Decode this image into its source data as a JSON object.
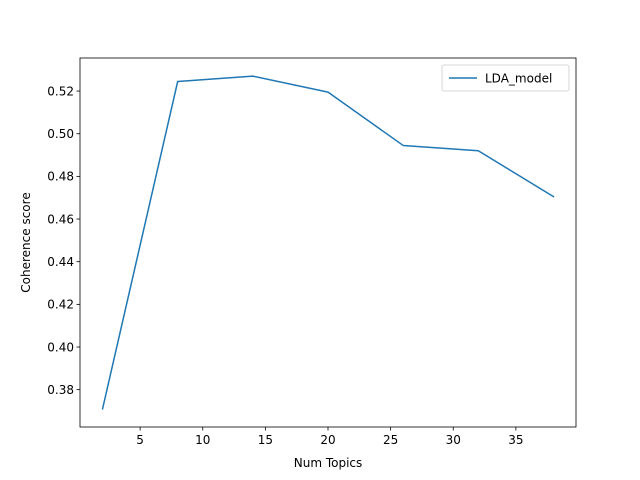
{
  "chart_data": {
    "type": "line",
    "title": "",
    "xlabel": "Num Topics",
    "ylabel": "Coherence score",
    "xlim": [
      0.2,
      39.8
    ],
    "ylim": [
      0.3625,
      0.5355
    ],
    "x_ticks": [
      5,
      10,
      15,
      20,
      25,
      30,
      35
    ],
    "y_ticks": [
      0.38,
      0.4,
      0.42,
      0.44,
      0.46,
      0.48,
      0.5,
      0.52
    ],
    "grid": false,
    "legend_position": "top-right",
    "series": [
      {
        "name": "LDA_model",
        "color": "#1f77b4",
        "x": [
          2,
          8,
          14,
          20,
          26,
          32,
          38
        ],
        "y": [
          0.371,
          0.5245,
          0.527,
          0.5195,
          0.4945,
          0.492,
          0.4705
        ]
      }
    ]
  }
}
